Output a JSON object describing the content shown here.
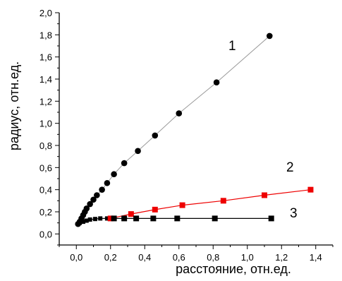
{
  "chart_data": {
    "type": "scatter",
    "title": "",
    "xlabel": "расстояние, отн.ед.",
    "ylabel": "радиус, отн.ед.",
    "xlim": [
      -0.1,
      1.5
    ],
    "ylim": [
      -0.1,
      2.0
    ],
    "x_ticks": [
      "0,0",
      "0,2",
      "0,4",
      "0,6",
      "0,8",
      "1,0",
      "1,2",
      "1,4"
    ],
    "y_ticks": [
      "0,0",
      "0,2",
      "0,4",
      "0,6",
      "0,8",
      "1,0",
      "1,2",
      "1,4",
      "1,6",
      "1,8",
      "2,0"
    ],
    "grid": false,
    "series": [
      {
        "name": "1",
        "marker": "circle",
        "color": "#000000",
        "line_color": "#9a9a9a",
        "x": [
          0.01,
          0.02,
          0.03,
          0.04,
          0.05,
          0.06,
          0.08,
          0.1,
          0.12,
          0.15,
          0.18,
          0.22,
          0.28,
          0.36,
          0.46,
          0.6,
          0.82,
          1.13
        ],
        "y": [
          0.09,
          0.11,
          0.14,
          0.17,
          0.2,
          0.23,
          0.27,
          0.31,
          0.35,
          0.4,
          0.46,
          0.54,
          0.64,
          0.75,
          0.89,
          1.09,
          1.37,
          1.79
        ]
      },
      {
        "name": "2",
        "marker": "square",
        "color": "#ee0000",
        "line_color": "#ee0000",
        "x": [
          0.2,
          0.32,
          0.46,
          0.62,
          0.86,
          1.1,
          1.37
        ],
        "y": [
          0.14,
          0.18,
          0.22,
          0.26,
          0.3,
          0.35,
          0.4
        ]
      },
      {
        "name": "3",
        "marker": "square",
        "color": "#000000",
        "line_color": "#000000",
        "x": [
          0.22,
          0.28,
          0.35,
          0.45,
          0.59,
          0.81,
          1.14
        ],
        "y": [
          0.14,
          0.14,
          0.14,
          0.14,
          0.14,
          0.14,
          0.14
        ]
      }
    ],
    "low_curve": {
      "x": [
        0.01,
        0.02,
        0.04,
        0.06,
        0.08,
        0.11,
        0.14,
        0.18,
        0.22
      ],
      "y": [
        0.09,
        0.1,
        0.11,
        0.12,
        0.13,
        0.135,
        0.14,
        0.14,
        0.14
      ]
    }
  }
}
